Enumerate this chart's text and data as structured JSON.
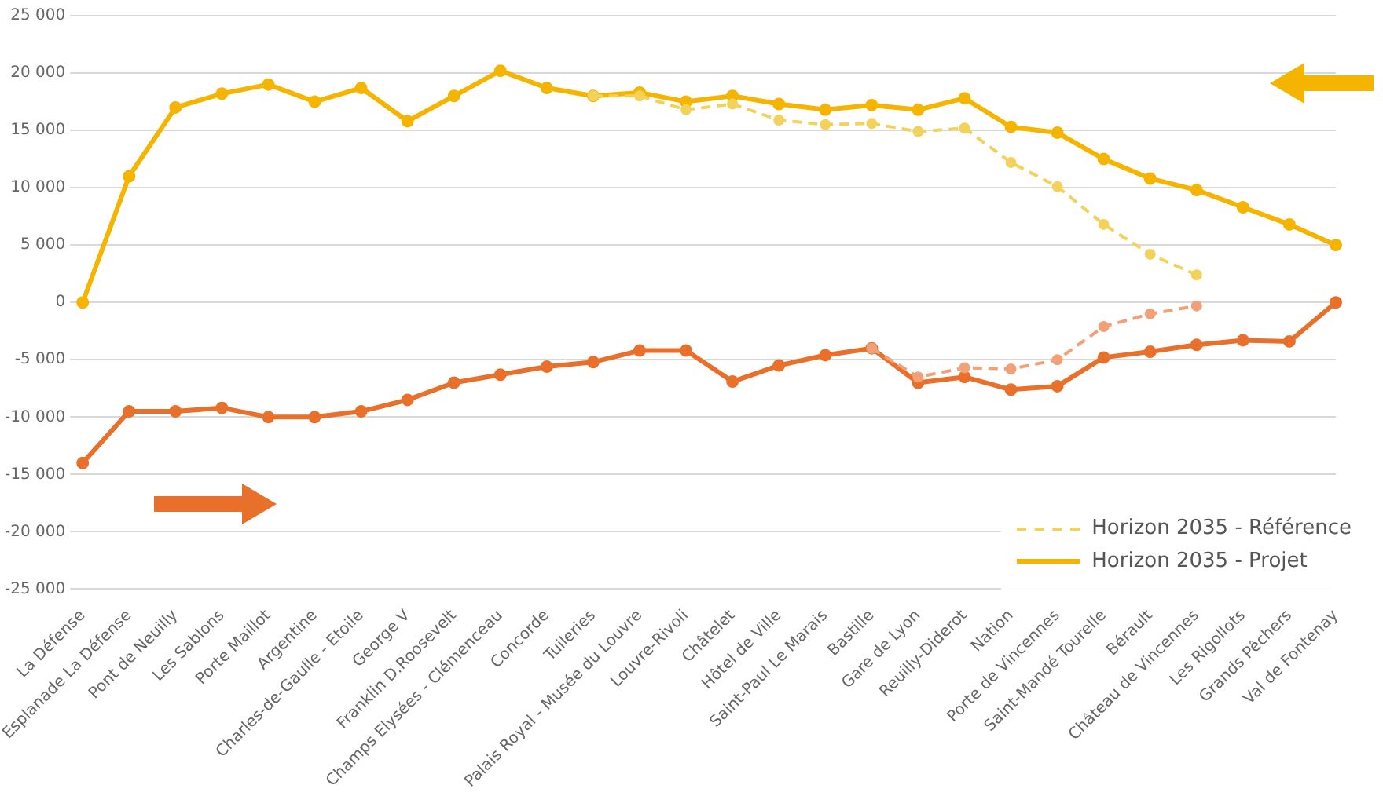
{
  "chart_data": {
    "type": "line",
    "categories": [
      "La Défense",
      "Esplanade La Défense",
      "Pont de Neuilly",
      "Les Sablons",
      "Porte Maillot",
      "Argentine",
      "Charles-de-Gaulle - Etoile",
      "George V",
      "Franklin D.Roosevelt",
      "Champs Elysées - Clémenceau",
      "Concorde",
      "Tuileries",
      "Palais Royal - Musée du Louvre",
      "Louvre-Rivoli",
      "Châtelet",
      "Hôtel de Ville",
      "Saint-Paul Le Marais",
      "Bastille",
      "Gare de Lyon",
      "Reuilly-Diderot",
      "Nation",
      "Porte de Vincennes",
      "Saint-Mandé Tourelle",
      "Bérault",
      "Château de Vincennes",
      "Les Rigollots",
      "Grands Pêchers",
      "Val de Fontenay"
    ],
    "series": [
      {
        "name": "Horizon 2035 - Référence",
        "color": "#f2d25a",
        "line_style": "dashed",
        "values": [
          null,
          null,
          null,
          null,
          null,
          null,
          null,
          null,
          null,
          null,
          null,
          18000,
          18000,
          16800,
          17300,
          15900,
          15500,
          15600,
          14900,
          15200,
          12200,
          10100,
          6800,
          4200,
          2400,
          null,
          null,
          null
        ]
      },
      {
        "name": "Horizon 2035 - Projet",
        "color": "#f5b400",
        "line_style": "solid",
        "values": [
          0,
          11000,
          17000,
          18200,
          19000,
          17500,
          18700,
          15800,
          18000,
          20200,
          18700,
          18000,
          18300,
          17500,
          18000,
          17300,
          16800,
          17200,
          16800,
          17800,
          15300,
          14800,
          12500,
          10800,
          9800,
          8300,
          6800,
          5000
        ]
      },
      {
        "color": "#f2a078",
        "line_style": "dashed",
        "values": [
          null,
          null,
          null,
          null,
          null,
          null,
          null,
          null,
          null,
          null,
          null,
          null,
          null,
          null,
          null,
          null,
          null,
          -4000,
          -6500,
          -5700,
          -5800,
          -5000,
          -2100,
          -1000,
          -300,
          null,
          null,
          null
        ]
      },
      {
        "color": "#e8702a",
        "line_style": "solid",
        "values": [
          -14000,
          -9500,
          -9500,
          -9200,
          -10000,
          -10000,
          -9500,
          -8500,
          -7000,
          -6300,
          -5600,
          -5200,
          -4200,
          -4200,
          -6900,
          -5500,
          -4600,
          -4000,
          -7000,
          -6500,
          -7600,
          -7300,
          -4800,
          -4300,
          -3700,
          -3300,
          -3400,
          0
        ]
      }
    ],
    "ylim": [
      -25000,
      25000
    ],
    "yticks": [
      {
        "value": -25000,
        "label": "-25 000"
      },
      {
        "value": -20000,
        "label": "-20 000"
      },
      {
        "value": -15000,
        "label": "-15 000"
      },
      {
        "value": -10000,
        "label": "-10 000"
      },
      {
        "value": -5000,
        "label": "-5 000"
      },
      0,
      {
        "value": 5000,
        "label": "5 000"
      },
      {
        "value": 10000,
        "label": "10 000"
      },
      {
        "value": 15000,
        "label": "15 000"
      },
      {
        "value": 20000,
        "label": "20 000"
      },
      {
        "value": 25000,
        "label": "25 000"
      }
    ],
    "grid": "y",
    "legend": "bottom right",
    "marker": "circle"
  }
}
